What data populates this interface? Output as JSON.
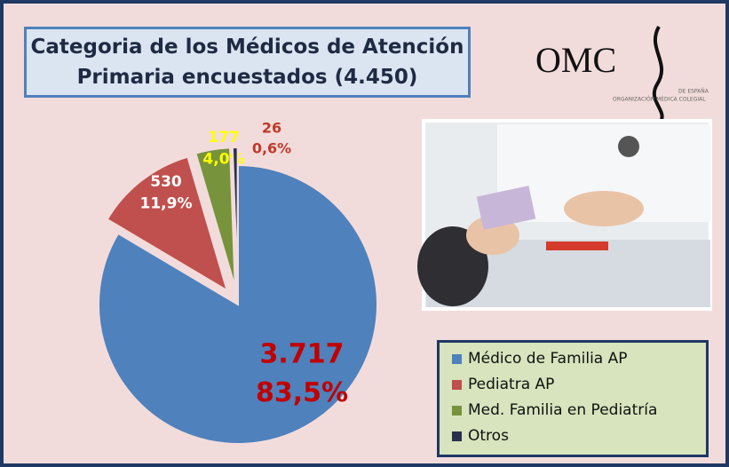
{
  "chart_data": {
    "type": "pie",
    "title": "Categoria de los Médicos de Atención Primaria encuestados (4.450)",
    "categories": [
      "Médico de Familia AP",
      "Pediatra AP",
      "Med. Familia en Pediatría",
      "Otros"
    ],
    "values": [
      3717,
      530,
      177,
      26
    ],
    "value_labels": [
      "3.717",
      "530",
      "177",
      "26"
    ],
    "percentages": [
      83.5,
      11.9,
      4.0,
      0.6
    ],
    "percentage_labels": [
      "83,5%",
      "11,9%",
      "4,0%",
      "0,6%"
    ],
    "colors": [
      "#4f81bd",
      "#c0504d",
      "#77933c",
      "#2b2f4e"
    ]
  },
  "logo": {
    "text": "OMC",
    "subtitle": "ORGANIZACIÓN MÉDICA COLEGIAL",
    "suffix": "DE ESPAÑA"
  }
}
